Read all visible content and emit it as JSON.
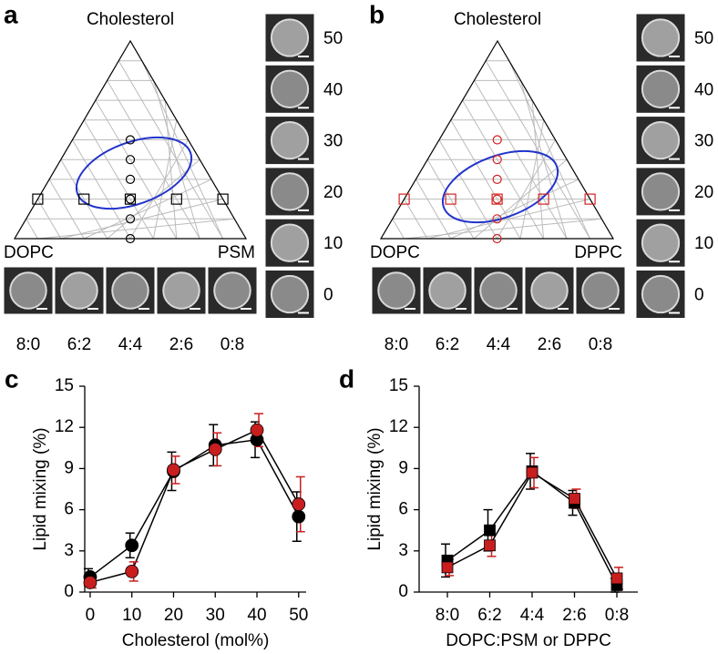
{
  "chart_data": [
    {
      "type": "ternary",
      "panel_label": "a",
      "apex_label": "Cholesterol",
      "left_label": "DOPC",
      "right_label": "PSM",
      "color": "#000000",
      "squares": {
        "cholesterol": [
          20,
          20,
          20,
          20,
          20
        ],
        "dopc": [
          80,
          60,
          40,
          20,
          0
        ]
      },
      "circles": {
        "cholesterol": [
          50,
          40,
          30,
          20,
          10,
          0
        ],
        "dopc": [
          25,
          30,
          35,
          40,
          45,
          50
        ]
      },
      "side_image_labels": [
        50,
        40,
        30,
        20,
        10,
        0
      ],
      "bottom_image_labels": [
        "8:0",
        "6:2",
        "4:4",
        "2:6",
        "0:8"
      ]
    },
    {
      "type": "ternary",
      "panel_label": "b",
      "apex_label": "Cholesterol",
      "left_label": "DOPC",
      "right_label": "DPPC",
      "color": "#d42020",
      "squares": {
        "cholesterol": [
          20,
          20,
          20,
          20,
          20
        ],
        "dopc": [
          80,
          60,
          40,
          20,
          0
        ]
      },
      "circles": {
        "cholesterol": [
          50,
          40,
          30,
          20,
          10,
          0
        ],
        "dopc": [
          25,
          30,
          35,
          40,
          45,
          50
        ]
      },
      "side_image_labels": [
        50,
        40,
        30,
        20,
        10,
        0
      ],
      "bottom_image_labels": [
        "8:0",
        "6:2",
        "4:4",
        "2:6",
        "0:8"
      ]
    },
    {
      "type": "line",
      "panel_label": "c",
      "marker": "circle",
      "x": [
        0,
        10,
        20,
        30,
        40,
        50
      ],
      "xlim": [
        -1.3,
        51.8
      ],
      "xticks": [
        0,
        10,
        20,
        30,
        40,
        50
      ],
      "ylim": [
        0,
        15
      ],
      "yticks": [
        0,
        3,
        6,
        9,
        12,
        15
      ],
      "x_label": "Cholesterol (mol%)",
      "y_label": "Lipid mixing (%)",
      "series": [
        {
          "color": "#000000",
          "values": [
            1.1,
            3.4,
            8.8,
            10.7,
            11.1,
            5.5
          ],
          "errors": [
            0.6,
            0.9,
            1.4,
            1.5,
            1.3,
            1.8
          ]
        },
        {
          "color": "#c81e1e",
          "values": [
            0.7,
            1.5,
            8.9,
            10.4,
            11.8,
            6.4
          ],
          "errors": [
            0.4,
            0.7,
            1.0,
            1.2,
            1.2,
            2.0
          ]
        }
      ]
    },
    {
      "type": "line",
      "panel_label": "d",
      "marker": "square",
      "categories": [
        "8:0",
        "6:2",
        "4:4",
        "2:6",
        "0:8"
      ],
      "ylim": [
        0,
        15
      ],
      "yticks": [
        0,
        3,
        6,
        9,
        12,
        15
      ],
      "x_label": "DOPC:PSM or DPPC",
      "y_label": "Lipid mixing (%)",
      "series": [
        {
          "color": "#000000",
          "values": [
            2.3,
            4.5,
            8.8,
            6.5,
            0.5
          ],
          "errors": [
            1.2,
            1.5,
            1.3,
            0.9,
            0.5
          ]
        },
        {
          "color": "#c81e1e",
          "values": [
            1.8,
            3.4,
            8.7,
            6.8,
            1.0
          ],
          "errors": [
            0.6,
            0.8,
            1.1,
            0.7,
            0.8
          ]
        }
      ]
    }
  ]
}
